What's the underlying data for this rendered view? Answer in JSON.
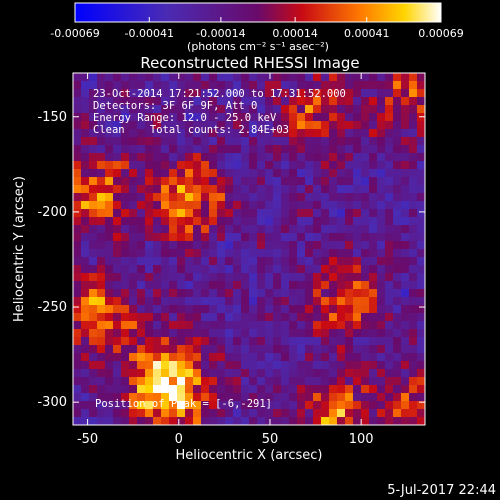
{
  "colorbar": {
    "tick_labels": [
      "-0.00069",
      "-0.00041",
      "-0.00014",
      "0.00014",
      "0.00041",
      "0.00069"
    ],
    "units_text": "(photons cm⁻² s⁻¹ asec⁻²)",
    "range": [
      -0.00069,
      0.00069
    ]
  },
  "title": "Reconstructed RHESSI Image",
  "annotations": {
    "time_range": "23-Oct-2014 17:21:52.000 to 17:31:52.000",
    "detectors": "Detectors: 3F 6F 9F, Att 0",
    "energy_range": "Energy Range: 12.0 - 25.0 keV",
    "algorithm_counts": "Clean    Total counts: 2.84E+03",
    "peak_position": "Position of Peak = [-6,-291]"
  },
  "axes": {
    "xlabel": "Heliocentric X (arcsec)",
    "ylabel": "Heliocentric Y (arcsec)",
    "xticks": [
      "-50",
      "0",
      "50",
      "100"
    ],
    "yticks": [
      "-150",
      "-200",
      "-250",
      "-300"
    ]
  },
  "chart_data": {
    "type": "heatmap",
    "title": "Reconstructed RHESSI Image",
    "xlabel": "Heliocentric X (arcsec)",
    "ylabel": "Heliocentric Y (arcsec)",
    "xlim": [
      -58,
      135
    ],
    "ylim": [
      -312,
      -127
    ],
    "xtick_values": [
      -50,
      0,
      50,
      100
    ],
    "ytick_values": [
      -150,
      -200,
      -250,
      -300
    ],
    "colormap": "blue-purple-red-yellow-white",
    "peak": [
      -6,
      -291
    ],
    "bright_sources": [
      {
        "x": -6,
        "y": -291,
        "level": 1.0
      },
      {
        "x": 5,
        "y": -195,
        "level": 0.7
      },
      {
        "x": -45,
        "y": -190,
        "level": 0.6
      },
      {
        "x": -45,
        "y": -255,
        "level": 0.6
      },
      {
        "x": 75,
        "y": -150,
        "level": 0.5
      },
      {
        "x": 90,
        "y": -245,
        "level": 0.55
      },
      {
        "x": 85,
        "y": -305,
        "level": 0.55
      },
      {
        "x": 125,
        "y": -140,
        "level": 0.4
      },
      {
        "x": 130,
        "y": -300,
        "level": 0.5
      }
    ]
  },
  "footer_timestamp": "5-Jul-2017 22:44"
}
